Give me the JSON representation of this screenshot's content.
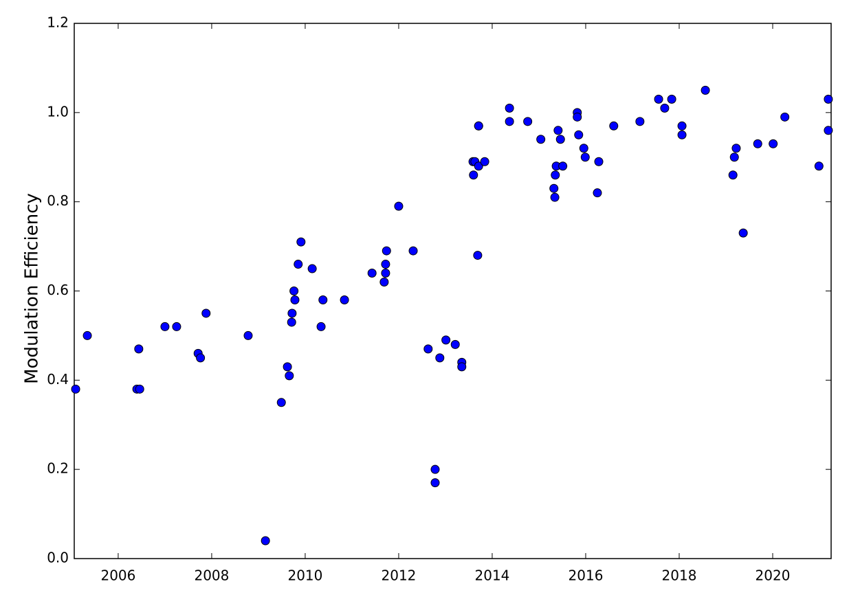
{
  "chart_data": {
    "type": "scatter",
    "ylabel": "Modulation Efficiency",
    "color": "#0000ff",
    "edgecolor": "#000000",
    "xlim": [
      2005.06,
      2021.25
    ],
    "xticks": [
      2006,
      2008,
      2010,
      2012,
      2014,
      2016,
      2018,
      2020
    ],
    "ylim": [
      0,
      1.2
    ],
    "yticks": [
      {
        "value": 0,
        "label": "0.0"
      },
      0.2,
      0.4,
      0.6,
      0.8,
      {
        "value": 1,
        "label": "1.0"
      },
      1.2
    ],
    "x": [
      2005.09,
      2005.34,
      2006.4,
      2006.46,
      2006.44,
      2007.0,
      2007.25,
      2007.71,
      2007.76,
      2007.88,
      2008.78,
      2009.15,
      2009.49,
      2009.62,
      2009.66,
      2009.71,
      2009.72,
      2009.76,
      2009.78,
      2009.85,
      2009.91,
      2010.15,
      2010.34,
      2010.38,
      2010.84,
      2011.43,
      2011.69,
      2011.72,
      2011.72,
      2011.74,
      2012.0,
      2012.31,
      2012.63,
      2012.78,
      2012.78,
      2012.88,
      2013.01,
      2013.21,
      2013.35,
      2013.35,
      2013.6,
      2013.59,
      2013.63,
      2013.71,
      2013.71,
      2013.71,
      2013.69,
      2013.84,
      2014.37,
      2014.37,
      2014.76,
      2015.04,
      2015.32,
      2015.34,
      2015.35,
      2015.37,
      2015.41,
      2015.46,
      2015.51,
      2015.82,
      2015.82,
      2015.85,
      2015.96,
      2015.99,
      2016.25,
      2016.28,
      2016.6,
      2017.16,
      2017.56,
      2017.69,
      2017.84,
      2018.06,
      2018.06,
      2018.56,
      2019.15,
      2019.18,
      2019.22,
      2019.37,
      2019.68,
      2020.01,
      2020.26,
      2020.99,
      2021.19,
      2021.19
    ],
    "values": [
      0.38,
      0.5,
      0.38,
      0.38,
      0.47,
      0.52,
      0.52,
      0.46,
      0.45,
      0.55,
      0.5,
      0.04,
      0.35,
      0.43,
      0.41,
      0.53,
      0.55,
      0.6,
      0.58,
      0.66,
      0.71,
      0.65,
      0.52,
      0.58,
      0.58,
      0.64,
      0.62,
      0.64,
      0.66,
      0.69,
      0.79,
      0.69,
      0.47,
      0.2,
      0.17,
      0.45,
      0.49,
      0.48,
      0.44,
      0.43,
      0.86,
      0.89,
      0.89,
      0.88,
      0.97,
      0.97,
      0.68,
      0.89,
      0.98,
      1.01,
      0.98,
      0.94,
      0.83,
      0.81,
      0.86,
      0.88,
      0.96,
      0.94,
      0.88,
      1.0,
      0.99,
      0.95,
      0.92,
      0.9,
      0.82,
      0.89,
      0.97,
      0.98,
      1.03,
      1.01,
      1.03,
      0.97,
      0.95,
      1.05,
      0.86,
      0.9,
      0.92,
      0.73,
      0.93,
      0.93,
      0.99,
      0.88,
      0.96,
      1.03
    ]
  }
}
